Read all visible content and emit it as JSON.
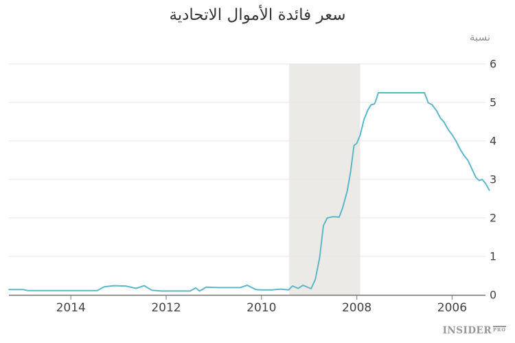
{
  "title": "سعر فائدة الأموال الاتحادية",
  "unit_label": "نسبة",
  "logo": {
    "main": "INSIDER",
    "sub": "PRO"
  },
  "chart_data": {
    "type": "line",
    "title": "سعر فائدة الأموال الاتحادية",
    "ylabel": "نسبة",
    "grid": "horizontal",
    "legend": "none",
    "x_axis": {
      "ticks": [
        2014,
        2012,
        2010,
        2008,
        2006
      ],
      "reversed": true,
      "range_years": [
        2005.3,
        2015.3
      ]
    },
    "y_axis": {
      "ticks": [
        0,
        1,
        2,
        3,
        4,
        5,
        6
      ],
      "range": [
        0,
        6
      ],
      "side": "right"
    },
    "recession_band": {
      "from_year": 2007.93,
      "to_year": 2009.42
    },
    "series": [
      {
        "name": "federal-funds-rate",
        "points": [
          [
            2005.22,
            2.72
          ],
          [
            2005.3,
            2.9
          ],
          [
            2005.37,
            3.0
          ],
          [
            2005.43,
            2.97
          ],
          [
            2005.5,
            3.05
          ],
          [
            2005.58,
            3.26
          ],
          [
            2005.67,
            3.5
          ],
          [
            2005.75,
            3.62
          ],
          [
            2005.83,
            3.78
          ],
          [
            2005.92,
            4.0
          ],
          [
            2006.0,
            4.16
          ],
          [
            2006.08,
            4.29
          ],
          [
            2006.17,
            4.49
          ],
          [
            2006.25,
            4.6
          ],
          [
            2006.33,
            4.79
          ],
          [
            2006.42,
            4.94
          ],
          [
            2006.5,
            4.99
          ],
          [
            2006.58,
            5.25
          ],
          [
            2007.55,
            5.25
          ],
          [
            2007.6,
            5.05
          ],
          [
            2007.63,
            4.96
          ],
          [
            2007.7,
            4.94
          ],
          [
            2007.77,
            4.8
          ],
          [
            2007.85,
            4.55
          ],
          [
            2007.93,
            4.15
          ],
          [
            2008.0,
            3.94
          ],
          [
            2008.06,
            3.88
          ],
          [
            2008.13,
            3.2
          ],
          [
            2008.2,
            2.7
          ],
          [
            2008.3,
            2.25
          ],
          [
            2008.37,
            2.02
          ],
          [
            2008.5,
            2.03
          ],
          [
            2008.62,
            2.0
          ],
          [
            2008.7,
            1.8
          ],
          [
            2008.78,
            0.97
          ],
          [
            2008.87,
            0.4
          ],
          [
            2008.96,
            0.16
          ],
          [
            2009.13,
            0.25
          ],
          [
            2009.23,
            0.17
          ],
          [
            2009.35,
            0.23
          ],
          [
            2009.43,
            0.13
          ],
          [
            2009.6,
            0.15
          ],
          [
            2009.79,
            0.13
          ],
          [
            2010.0,
            0.13
          ],
          [
            2010.12,
            0.14
          ],
          [
            2010.3,
            0.25
          ],
          [
            2010.45,
            0.19
          ],
          [
            2010.7,
            0.19
          ],
          [
            2010.9,
            0.19
          ],
          [
            2011.16,
            0.2
          ],
          [
            2011.3,
            0.1
          ],
          [
            2011.38,
            0.18
          ],
          [
            2011.5,
            0.1
          ],
          [
            2011.8,
            0.1
          ],
          [
            2012.1,
            0.1
          ],
          [
            2012.3,
            0.12
          ],
          [
            2012.46,
            0.24
          ],
          [
            2012.63,
            0.17
          ],
          [
            2012.85,
            0.23
          ],
          [
            2013.1,
            0.24
          ],
          [
            2013.3,
            0.21
          ],
          [
            2013.45,
            0.11
          ],
          [
            2013.8,
            0.11
          ],
          [
            2014.2,
            0.11
          ],
          [
            2014.6,
            0.11
          ],
          [
            2014.9,
            0.11
          ],
          [
            2015.0,
            0.14
          ],
          [
            2015.3,
            0.14
          ]
        ]
      }
    ],
    "colors": {
      "line": "#5ab7c8",
      "band": "#eceae7",
      "grid": "#e8e7e4",
      "axis": "#75736d",
      "tick": "#8d8b86",
      "label": "#414141",
      "muted": "#8f8f8f"
    }
  }
}
